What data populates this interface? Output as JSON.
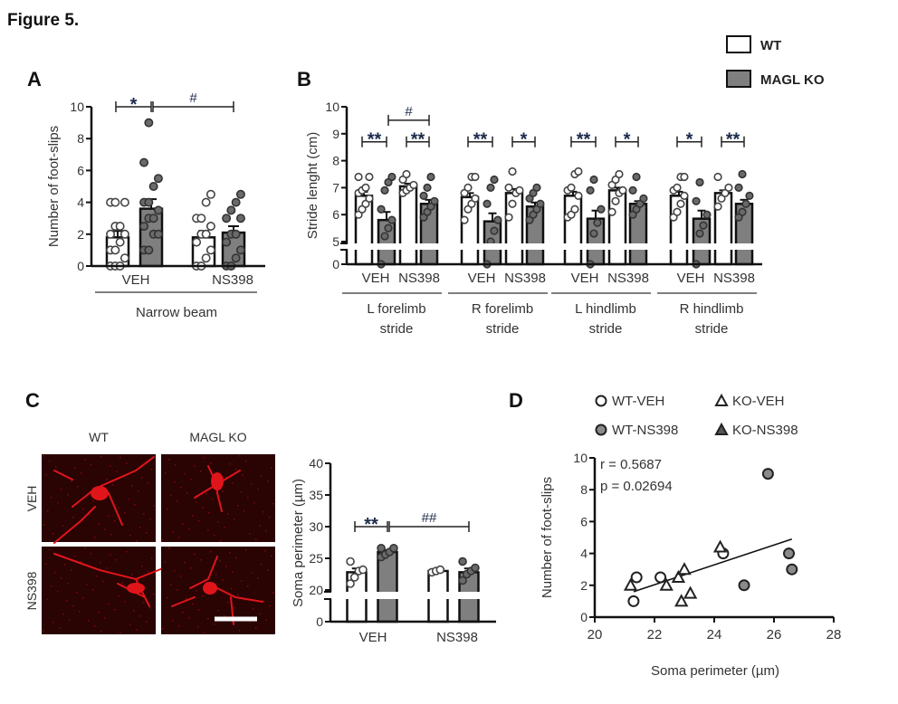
{
  "figure_title": "Figure 5.",
  "legend": {
    "wt": "WT",
    "ko": "MAGL KO"
  },
  "colors": {
    "wt": "#ffffff",
    "ko": "#7f7f7f",
    "stain": "#e0151a",
    "bg_image": "#2a0303"
  },
  "chart_data": [
    {
      "id": "A",
      "type": "bar",
      "panel_label": "A",
      "ylabel": "Number of foot-slips",
      "ylim": [
        0,
        10
      ],
      "yticks": [
        0,
        2,
        4,
        6,
        8,
        10
      ],
      "categories": [
        "VEH",
        "NS398"
      ],
      "group_label": "Narrow beam",
      "series": [
        {
          "name": "WT"
        },
        {
          "name": "MAGL KO"
        }
      ],
      "bars": [
        {
          "group": "VEH",
          "series": "WT",
          "mean": 1.8,
          "sem": 0.4,
          "points": [
            0,
            0,
            0,
            0.5,
            1,
            1,
            1.5,
            2,
            2,
            2.5,
            2.5,
            4,
            4,
            4
          ]
        },
        {
          "group": "VEH",
          "series": "MAGL KO",
          "mean": 3.6,
          "sem": 0.6,
          "points": [
            1,
            1,
            2,
            2,
            2.5,
            3,
            3,
            3.5,
            4,
            4,
            5,
            5.5,
            6.5,
            9
          ]
        },
        {
          "group": "NS398",
          "series": "WT",
          "mean": 1.8,
          "sem": 0.4,
          "points": [
            0,
            0,
            0.5,
            1,
            1.5,
            2,
            2,
            2.5,
            3,
            3,
            4,
            4.5
          ]
        },
        {
          "group": "NS398",
          "series": "MAGL KO",
          "mean": 2.1,
          "sem": 0.4,
          "points": [
            0,
            0,
            0.5,
            1,
            1.5,
            2,
            2,
            3,
            3,
            3.5,
            4,
            4.5
          ]
        }
      ],
      "significance": [
        {
          "label": "*",
          "from": 0,
          "to": 1,
          "level": 10
        },
        {
          "label": "#",
          "from": 1,
          "to": 3,
          "level": 10
        }
      ]
    },
    {
      "id": "B",
      "type": "bar",
      "panel_label": "B",
      "ylabel": "Stride lenght (cm)",
      "ylim": [
        5,
        10
      ],
      "axis_break": [
        0,
        5
      ],
      "yticks": [
        0,
        5,
        6,
        7,
        8,
        9,
        10
      ],
      "groups": [
        {
          "label": [
            "L forelimb",
            "stride"
          ],
          "categories": [
            "VEH",
            "NS398"
          ]
        },
        {
          "label": [
            "R forelimb",
            "stride"
          ],
          "categories": [
            "VEH",
            "NS398"
          ]
        },
        {
          "label": [
            "L hindlimb",
            "stride"
          ],
          "categories": [
            "VEH",
            "NS398"
          ]
        },
        {
          "label": [
            "R hindlimb",
            "stride"
          ],
          "categories": [
            "VEH",
            "NS398"
          ]
        }
      ],
      "bars": [
        {
          "group": 0,
          "series": "WT",
          "mean": 6.7,
          "sem": 0.15,
          "points": [
            6.0,
            6.2,
            6.4,
            6.6,
            6.8,
            6.9,
            7.0,
            7.4,
            7.4
          ]
        },
        {
          "group": 0,
          "series": "MAGL KO",
          "mean": 5.8,
          "sem": 0.3,
          "points": [
            4.6,
            5.2,
            5.5,
            5.8,
            6.2,
            6.9,
            7.2,
            7.4
          ]
        },
        {
          "group": 0,
          "series": "WT",
          "mean": 7.05,
          "sem": 0.1,
          "points": [
            6.8,
            6.9,
            7.0,
            7.1,
            7.3,
            7.5
          ]
        },
        {
          "group": 0,
          "series": "MAGL KO",
          "mean": 6.4,
          "sem": 0.15,
          "points": [
            5.9,
            6.1,
            6.3,
            6.5,
            6.7,
            7.0,
            7.4
          ]
        },
        {
          "group": 1,
          "series": "WT",
          "mean": 6.65,
          "sem": 0.15,
          "points": [
            5.8,
            6.2,
            6.4,
            6.6,
            6.8,
            7.0,
            7.4,
            7.4
          ]
        },
        {
          "group": 1,
          "series": "MAGL KO",
          "mean": 5.75,
          "sem": 0.3,
          "points": [
            4.6,
            5.0,
            5.4,
            5.8,
            6.4,
            7.0,
            7.3
          ]
        },
        {
          "group": 1,
          "series": "WT",
          "mean": 6.8,
          "sem": 0.15,
          "points": [
            5.9,
            6.4,
            6.8,
            6.9,
            7.0,
            7.6
          ]
        },
        {
          "group": 1,
          "series": "MAGL KO",
          "mean": 6.3,
          "sem": 0.15,
          "points": [
            5.8,
            6.0,
            6.2,
            6.4,
            6.6,
            6.8,
            7.0
          ]
        },
        {
          "group": 2,
          "series": "WT",
          "mean": 6.7,
          "sem": 0.15,
          "points": [
            5.9,
            6.0,
            6.2,
            6.7,
            6.9,
            7.0,
            7.5,
            7.6
          ]
        },
        {
          "group": 2,
          "series": "MAGL KO",
          "mean": 5.85,
          "sem": 0.3,
          "points": [
            4.6,
            5.3,
            5.7,
            6.2,
            6.9,
            7.3
          ]
        },
        {
          "group": 2,
          "series": "WT",
          "mean": 6.9,
          "sem": 0.1,
          "points": [
            6.1,
            6.5,
            6.8,
            6.9,
            7.1,
            7.3,
            7.5
          ]
        },
        {
          "group": 2,
          "series": "MAGL KO",
          "mean": 6.4,
          "sem": 0.1,
          "points": [
            6.0,
            6.2,
            6.4,
            6.6,
            6.9,
            7.4
          ]
        },
        {
          "group": 3,
          "series": "WT",
          "mean": 6.7,
          "sem": 0.15,
          "points": [
            5.9,
            6.1,
            6.4,
            6.7,
            6.9,
            7.0,
            7.4,
            7.4
          ]
        },
        {
          "group": 3,
          "series": "MAGL KO",
          "mean": 5.85,
          "sem": 0.3,
          "points": [
            4.6,
            5.3,
            5.6,
            6.0,
            6.5,
            7.2
          ]
        },
        {
          "group": 3,
          "series": "WT",
          "mean": 6.8,
          "sem": 0.1,
          "points": [
            6.3,
            6.6,
            6.8,
            7.0,
            7.4
          ]
        },
        {
          "group": 3,
          "series": "MAGL KO",
          "mean": 6.4,
          "sem": 0.15,
          "points": [
            5.9,
            6.1,
            6.4,
            6.7,
            7.0,
            7.5
          ]
        }
      ],
      "significance": [
        {
          "label": "**",
          "from": 0,
          "to": 1,
          "level": 8.7
        },
        {
          "label": "**",
          "from": 2,
          "to": 3,
          "level": 8.7
        },
        {
          "label": "#",
          "from": 1,
          "to": 3,
          "level": 9.5
        },
        {
          "label": "**",
          "from": 4,
          "to": 5,
          "level": 8.7
        },
        {
          "label": "*",
          "from": 6,
          "to": 7,
          "level": 8.7
        },
        {
          "label": "**",
          "from": 8,
          "to": 9,
          "level": 8.7
        },
        {
          "label": "*",
          "from": 10,
          "to": 11,
          "level": 8.7
        },
        {
          "label": "*",
          "from": 12,
          "to": 13,
          "level": 8.7
        },
        {
          "label": "**",
          "from": 14,
          "to": 15,
          "level": 8.7
        }
      ]
    },
    {
      "id": "C",
      "type": "bar",
      "panel_label": "C",
      "ylabel": "Soma perimeter (µm)",
      "ylim": [
        20,
        40
      ],
      "axis_break": [
        0,
        20
      ],
      "yticks": [
        0,
        20,
        25,
        30,
        35,
        40
      ],
      "categories": [
        "VEH",
        "NS398"
      ],
      "image_columns": [
        "WT",
        "MAGL KO"
      ],
      "image_rows": [
        "VEH",
        "NS398"
      ],
      "bars": [
        {
          "group": "VEH",
          "series": "WT",
          "mean": 22.8,
          "sem": 0.6,
          "points": [
            21.0,
            22.0,
            23.0,
            23.2,
            24.5
          ]
        },
        {
          "group": "VEH",
          "series": "MAGL KO",
          "mean": 26.0,
          "sem": 0.3,
          "points": [
            25.2,
            25.6,
            26.0,
            26.6,
            26.6
          ]
        },
        {
          "group": "NS398",
          "series": "WT",
          "mean": 23.0,
          "sem": 0.1,
          "points": [
            22.8,
            23.0,
            23.2
          ]
        },
        {
          "group": "NS398",
          "series": "MAGL KO",
          "mean": 22.8,
          "sem": 0.6,
          "points": [
            21.5,
            22.5,
            23.0,
            23.5,
            24.5
          ]
        }
      ],
      "significance": [
        {
          "label": "**",
          "from": 0,
          "to": 1,
          "level": 30
        },
        {
          "label": "##",
          "from": 1,
          "to": 3,
          "level": 30
        }
      ]
    },
    {
      "id": "D",
      "type": "scatter",
      "panel_label": "D",
      "xlabel": "Soma perimeter (µm)",
      "ylabel": "Number of foot-slips",
      "xlim": [
        20,
        28
      ],
      "ylim": [
        0,
        10
      ],
      "xticks": [
        20,
        22,
        24,
        26,
        28
      ],
      "yticks": [
        0,
        2,
        4,
        6,
        8,
        10
      ],
      "stats": [
        "r = 0.5687",
        "p = 0.02694"
      ],
      "series": [
        {
          "name": "WT-VEH",
          "marker": "circle-open",
          "points": [
            [
              21.3,
              1
            ],
            [
              21.4,
              2.5
            ],
            [
              22.2,
              2.5
            ],
            [
              24.3,
              4
            ]
          ]
        },
        {
          "name": "KO-VEH",
          "marker": "triangle-open",
          "points": [
            [
              21.2,
              2
            ],
            [
              22.4,
              2
            ],
            [
              22.8,
              2.5
            ],
            [
              23.0,
              3
            ],
            [
              22.9,
              1
            ],
            [
              23.2,
              1.5
            ],
            [
              24.2,
              4.4
            ]
          ]
        },
        {
          "name": "WT-NS398",
          "marker": "circle-gray",
          "points": [
            [
              25.0,
              2
            ],
            [
              25.8,
              9
            ],
            [
              26.5,
              4
            ],
            [
              26.6,
              3
            ]
          ]
        },
        {
          "name": "KO-NS398",
          "marker": "triangle-filled",
          "points": []
        }
      ],
      "regression": [
        [
          21.3,
          1.6
        ],
        [
          26.6,
          4.9
        ]
      ]
    }
  ]
}
